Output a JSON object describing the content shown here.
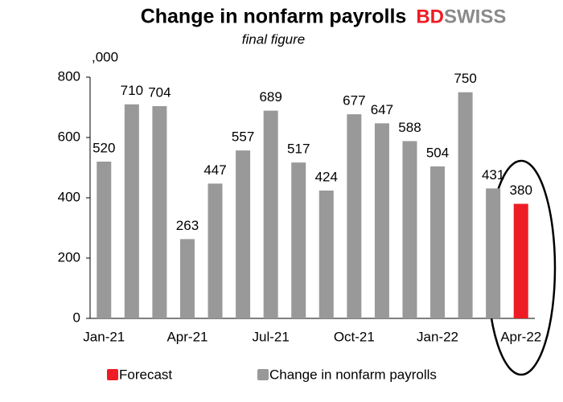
{
  "chart_data": {
    "type": "bar",
    "title": "Change in nonfarm payrolls",
    "subtitle": "final figure",
    "unit_label": ",000",
    "brand": {
      "part1": "BD",
      "part2": "SWISS"
    },
    "categories": [
      "Jan-21",
      null,
      null,
      "Apr-21",
      null,
      null,
      "Jul-21",
      null,
      null,
      "Oct-21",
      null,
      null,
      "Jan-22",
      null,
      null,
      "Apr-22"
    ],
    "series": [
      {
        "name": "Forecast",
        "color": "#ee1c25",
        "values": [
          null,
          null,
          null,
          null,
          null,
          null,
          null,
          null,
          null,
          null,
          null,
          null,
          null,
          null,
          null,
          380
        ]
      },
      {
        "name": "Change in nonfarm payrolls",
        "color": "#999999",
        "values": [
          520,
          710,
          704,
          263,
          447,
          557,
          689,
          517,
          424,
          677,
          647,
          588,
          504,
          750,
          431,
          null
        ]
      }
    ],
    "ylim": [
      0,
      800
    ],
    "yticks": [
      0,
      200,
      400,
      600,
      800
    ],
    "grid": false
  }
}
